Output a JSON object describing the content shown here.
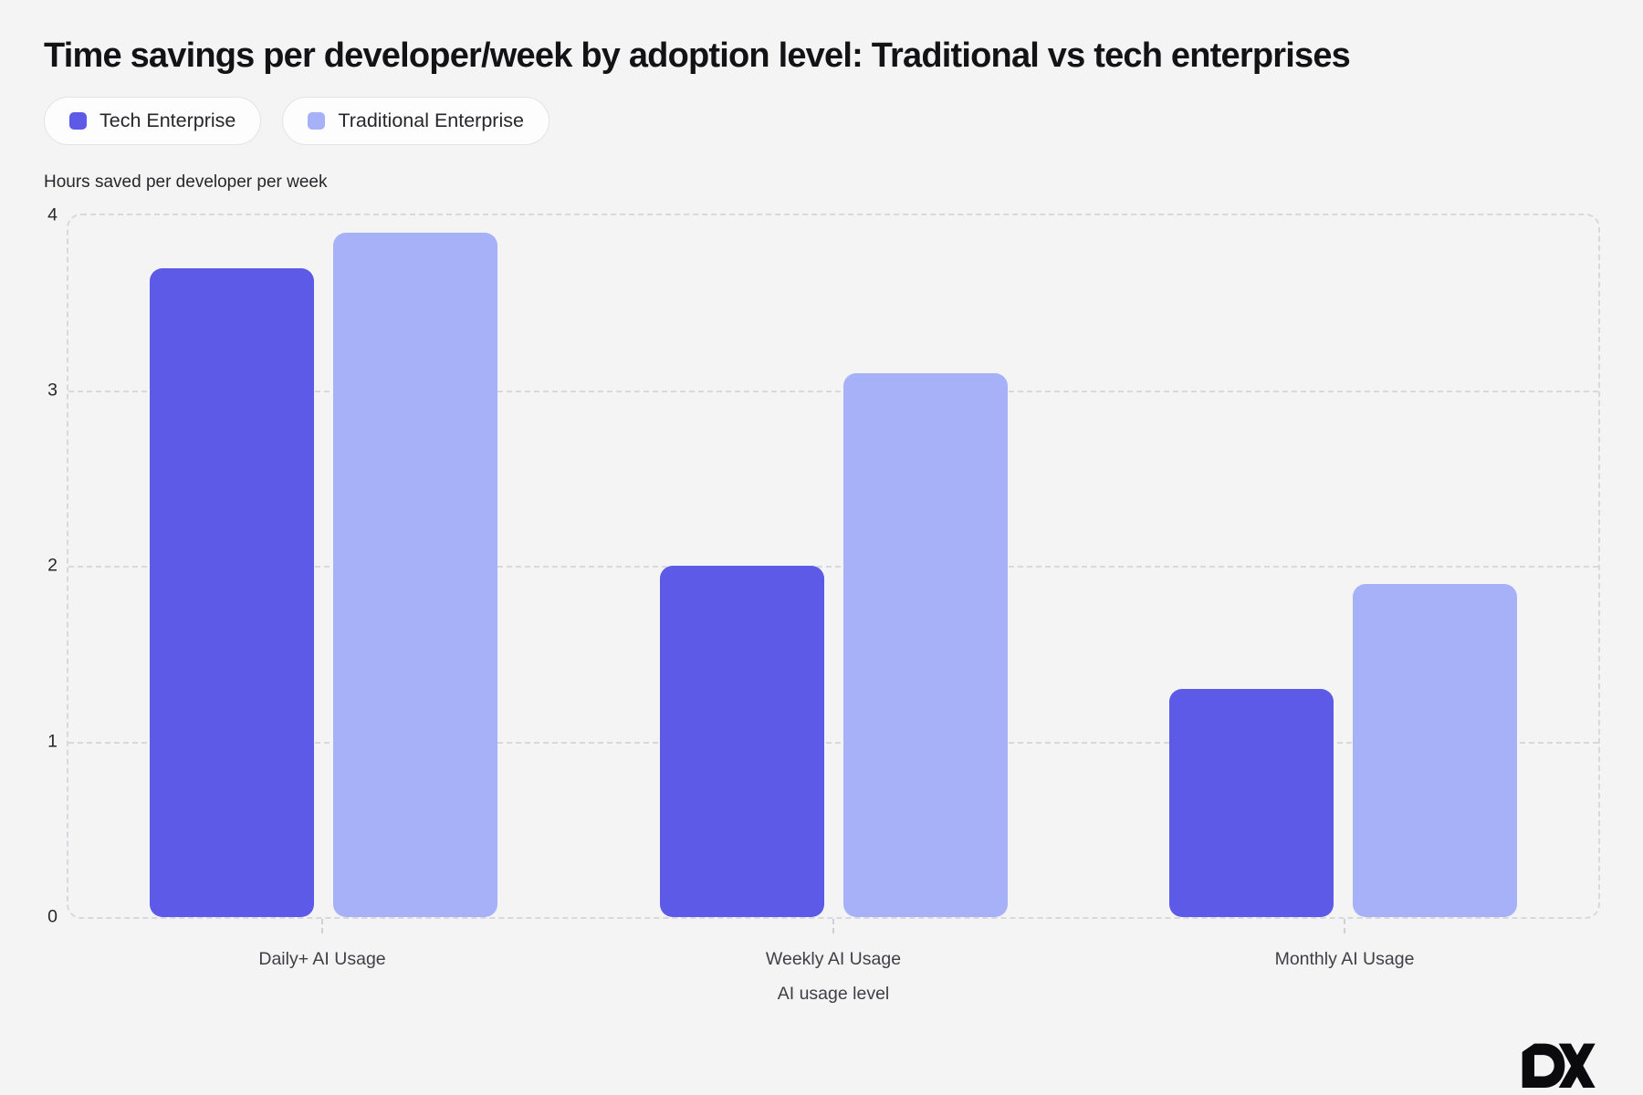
{
  "title": "Time savings per developer/week by adoption level: Traditional vs tech enterprises",
  "legend": [
    {
      "label": "Tech Enterprise",
      "color": "#5d5ae8"
    },
    {
      "label": "Traditional Enterprise",
      "color": "#a6b1f8"
    }
  ],
  "y_axis_title": "Hours saved per developer per week",
  "x_axis_title": "AI usage level",
  "y_ticks": [
    "4",
    "3",
    "2",
    "1",
    "0"
  ],
  "footer_logo_text": "DX",
  "colors": {
    "background": "#f4f4f5",
    "grid": "#d8d8dd",
    "tech_series": "#5d5ae8",
    "traditional_series": "#a6b1f8",
    "title_text": "#131316",
    "axis_text": "#3f3f46"
  },
  "chart_data": {
    "type": "bar",
    "categories": [
      "Daily+ AI Usage",
      "Weekly AI Usage",
      "Monthly AI Usage"
    ],
    "series": [
      {
        "name": "Tech Enterprise",
        "color": "#5d5ae8",
        "values": [
          3.7,
          2.0,
          1.3
        ]
      },
      {
        "name": "Traditional Enterprise",
        "color": "#a6b1f8",
        "values": [
          3.9,
          3.1,
          1.9
        ]
      }
    ],
    "title": "Time savings per developer/week by adoption level: Traditional vs tech enterprises",
    "xlabel": "AI usage level",
    "ylabel": "Hours saved per developer per week",
    "ylim": [
      0,
      4
    ],
    "grid": "horizontal-dashed",
    "legend_position": "top-left"
  }
}
